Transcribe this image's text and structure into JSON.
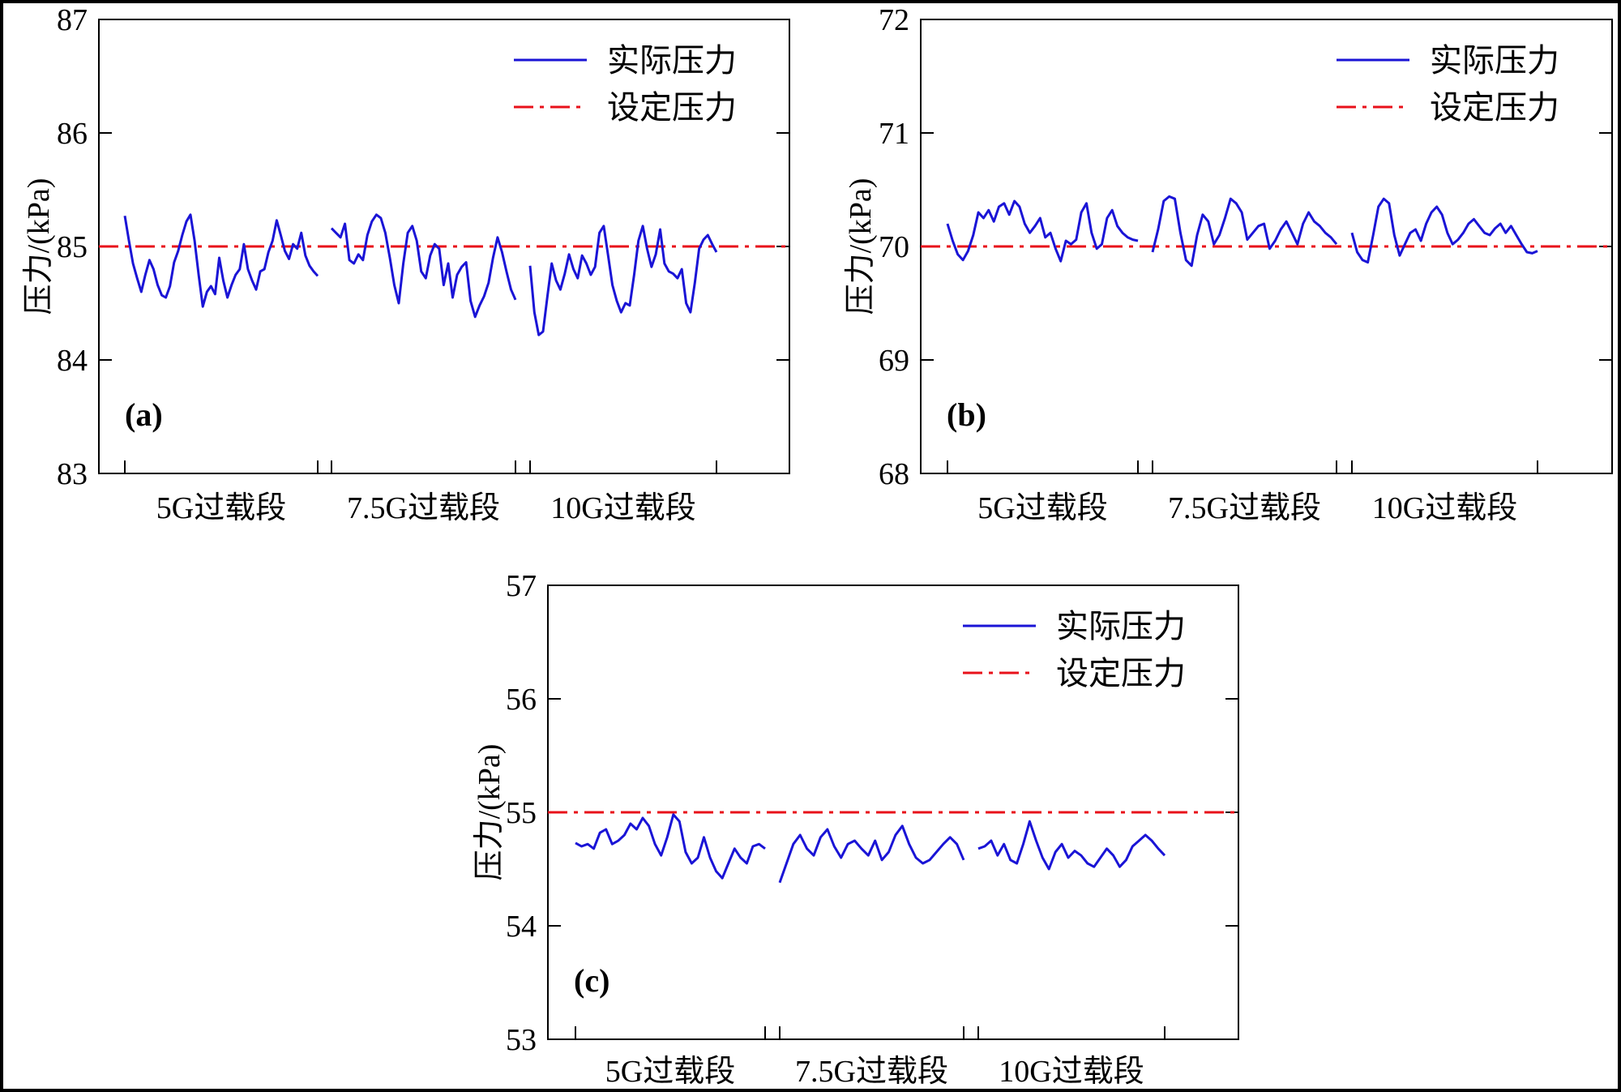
{
  "chart_data": [
    {
      "type": "line",
      "panel_label": "(a)",
      "ylabel": "压力/(kPa)",
      "ylim": [
        83,
        87
      ],
      "yticks": [
        83,
        84,
        85,
        86,
        87
      ],
      "segments": [
        "5G过载段",
        "7.5G过载段",
        "10G过载段"
      ],
      "legend": {
        "placement": "top-right",
        "actual": "实际压力",
        "setpoint": "设定压力"
      },
      "setpoint": 85,
      "colors": {
        "actual": "#1a14d6",
        "setpoint": "#e8111a"
      },
      "series": [
        [
          85.27,
          85.05,
          84.85,
          84.72,
          84.6,
          84.75,
          84.88,
          84.8,
          84.66,
          84.57,
          84.55,
          84.65,
          84.86,
          84.96,
          85.1,
          85.22,
          85.28,
          85.05,
          84.75,
          84.47,
          84.6,
          84.65,
          84.58,
          84.9,
          84.7,
          84.55,
          84.66,
          84.75,
          84.8,
          85.02,
          84.8,
          84.7,
          84.62,
          84.78,
          84.8,
          84.95,
          85.05,
          85.23,
          85.1,
          84.96,
          84.89,
          85.02,
          84.98,
          85.12,
          84.92,
          84.83,
          84.78,
          84.74
        ],
        [
          85.16,
          85.12,
          85.08,
          85.2,
          84.88,
          84.85,
          84.93,
          84.88,
          85.1,
          85.22,
          85.28,
          85.25,
          85.12,
          84.9,
          84.66,
          84.5,
          84.85,
          85.12,
          85.18,
          85.05,
          84.78,
          84.72,
          84.92,
          85.02,
          84.98,
          84.66,
          84.85,
          84.55,
          84.75,
          84.82,
          84.86,
          84.52,
          84.38,
          84.48,
          84.56,
          84.68,
          84.9,
          85.08,
          84.95,
          84.78,
          84.62,
          84.53
        ],
        [
          84.83,
          84.42,
          84.22,
          84.25,
          84.56,
          84.85,
          84.7,
          84.62,
          84.76,
          84.93,
          84.8,
          84.72,
          84.92,
          84.85,
          84.75,
          84.82,
          85.12,
          85.18,
          84.92,
          84.66,
          84.52,
          84.42,
          84.5,
          84.48,
          84.75,
          85.05,
          85.18,
          84.98,
          84.82,
          84.93,
          85.15,
          84.85,
          84.78,
          84.76,
          84.72,
          84.8,
          84.5,
          84.42,
          84.68,
          84.98,
          85.06,
          85.1,
          85.02,
          84.95
        ]
      ]
    },
    {
      "type": "line",
      "panel_label": "(b)",
      "ylabel": "压力/(kPa)",
      "ylim": [
        68,
        72
      ],
      "yticks": [
        68,
        69,
        70,
        71,
        72
      ],
      "segments": [
        "5G过载段",
        "7.5G过载段",
        "10G过载段"
      ],
      "legend": {
        "placement": "top-right",
        "actual": "实际压力",
        "setpoint": "设定压力"
      },
      "setpoint": 70,
      "colors": {
        "actual": "#1a14d6",
        "setpoint": "#e8111a"
      },
      "series": [
        [
          70.2,
          70.05,
          69.93,
          69.88,
          69.96,
          70.1,
          70.3,
          70.25,
          70.32,
          70.22,
          70.35,
          70.38,
          70.28,
          70.4,
          70.35,
          70.2,
          70.12,
          70.18,
          70.25,
          70.08,
          70.12,
          69.98,
          69.87,
          70.05,
          70.02,
          70.06,
          70.3,
          70.38,
          70.12,
          69.98,
          70.02,
          70.25,
          70.32,
          70.18,
          70.12,
          70.08,
          70.06,
          70.05
        ],
        [
          69.95,
          70.15,
          70.4,
          70.44,
          70.42,
          70.12,
          69.88,
          69.83,
          70.1,
          70.28,
          70.22,
          70.02,
          70.1,
          70.25,
          70.42,
          70.38,
          70.3,
          70.06,
          70.12,
          70.18,
          70.2,
          69.98,
          70.05,
          70.15,
          70.22,
          70.12,
          70.02,
          70.2,
          70.3,
          70.22,
          70.18,
          70.12,
          70.08,
          70.02
        ],
        [
          70.12,
          69.95,
          69.88,
          69.86,
          70.1,
          70.35,
          70.42,
          70.38,
          70.1,
          69.92,
          70.02,
          70.12,
          70.15,
          70.05,
          70.2,
          70.3,
          70.35,
          70.28,
          70.12,
          70.02,
          70.06,
          70.12,
          70.2,
          70.24,
          70.18,
          70.12,
          70.1,
          70.16,
          70.2,
          70.12,
          70.18,
          70.1,
          70.02,
          69.95,
          69.94,
          69.96
        ]
      ]
    },
    {
      "type": "line",
      "panel_label": "(c)",
      "ylabel": "压力/(kPa)",
      "ylim": [
        53,
        57
      ],
      "yticks": [
        53,
        54,
        55,
        56,
        57
      ],
      "segments": [
        "5G过载段",
        "7.5G过载段",
        "10G过载段"
      ],
      "legend": {
        "placement": "top-right",
        "actual": "实际压力",
        "setpoint": "设定压力"
      },
      "setpoint": 55,
      "colors": {
        "actual": "#1a14d6",
        "setpoint": "#e8111a"
      },
      "series": [
        [
          54.73,
          54.7,
          54.72,
          54.68,
          54.82,
          54.85,
          54.72,
          54.75,
          54.8,
          54.9,
          54.85,
          54.95,
          54.88,
          54.72,
          54.62,
          54.78,
          54.98,
          54.92,
          54.65,
          54.55,
          54.6,
          54.78,
          54.6,
          54.48,
          54.42,
          54.55,
          54.68,
          54.6,
          54.55,
          54.7,
          54.72,
          54.68
        ],
        [
          54.38,
          54.55,
          54.72,
          54.8,
          54.68,
          54.62,
          54.78,
          54.85,
          54.7,
          54.6,
          54.72,
          54.75,
          54.68,
          54.62,
          54.75,
          54.58,
          54.65,
          54.8,
          54.88,
          54.72,
          54.6,
          54.55,
          54.58,
          54.65,
          54.72,
          54.78,
          54.72,
          54.58
        ],
        [
          54.68,
          54.7,
          54.75,
          54.62,
          54.72,
          54.58,
          54.55,
          54.72,
          54.92,
          54.75,
          54.6,
          54.5,
          54.65,
          54.72,
          54.6,
          54.66,
          54.62,
          54.55,
          54.52,
          54.6,
          54.68,
          54.62,
          54.52,
          54.58,
          54.7,
          54.75,
          54.8,
          54.75,
          54.68,
          54.62
        ]
      ]
    }
  ]
}
